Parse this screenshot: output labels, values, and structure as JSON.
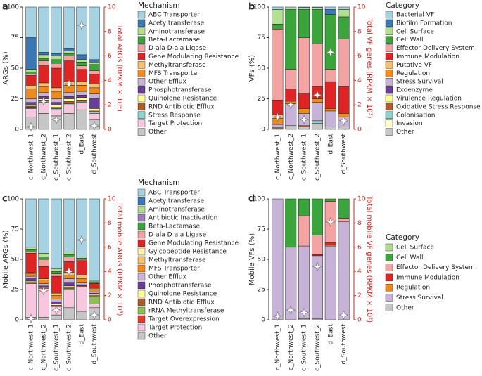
{
  "chart_data": [
    {
      "type": "stacked_bar",
      "label": "a",
      "ylabel": "ARGs (%)",
      "y2label": "Total ARGs (RPKM × 10⁴)",
      "legend_title": "Mechanism",
      "categories": [
        "c_Northwest_1",
        "c_Northwest_2",
        "c_Southwest_1",
        "c_Southwest_2",
        "d_East",
        "d_Southwest"
      ],
      "ylim": [
        0,
        100
      ],
      "yticks": [
        0,
        25,
        50,
        75,
        100
      ],
      "y2lim": [
        0,
        10
      ],
      "y2ticks": [
        0,
        2,
        4,
        6,
        8,
        10
      ],
      "y2_values": [
        0.2,
        2.3,
        0.8,
        3.7,
        8.5,
        0.3
      ],
      "series": [
        {
          "name": "ABC Transporter",
          "color": "#a6d3e3",
          "values": [
            25,
            37,
            38,
            34,
            39,
            43
          ]
        },
        {
          "name": "Acetyltransferase",
          "color": "#3a78b5",
          "values": [
            26,
            2,
            2,
            2,
            4,
            2
          ]
        },
        {
          "name": "Aminotransferase",
          "color": "#b3e08e",
          "values": [
            2,
            3,
            3,
            2,
            2,
            2
          ]
        },
        {
          "name": "Beta-Lactamase",
          "color": "#3aa53a",
          "values": [
            2,
            2,
            3,
            2,
            3,
            5
          ]
        },
        {
          "name": "D-ala D-ala Ligase",
          "color": "#f4a3a3",
          "values": [
            1,
            4,
            4,
            4,
            3,
            3
          ]
        },
        {
          "name": "Gene Modulating Resistance",
          "color": "#e02424",
          "values": [
            8,
            14,
            16,
            17,
            10,
            8
          ]
        },
        {
          "name": "Methyltransferase",
          "color": "#f8bf6e",
          "values": [
            3,
            3,
            3,
            3,
            3,
            3
          ]
        },
        {
          "name": "MFS Transporter",
          "color": "#f08a1c",
          "values": [
            8,
            5,
            6,
            6,
            5,
            5
          ]
        },
        {
          "name": "Other Efflux",
          "color": "#c8b3d8",
          "values": [
            3,
            3,
            3,
            3,
            3,
            4
          ]
        },
        {
          "name": "Phosphotransferase",
          "color": "#6a3d9a",
          "values": [
            2,
            2,
            2,
            2,
            2,
            8
          ]
        },
        {
          "name": "Quinolone Resistance",
          "color": "#ffff99",
          "values": [
            1,
            1,
            2,
            2,
            2,
            2
          ]
        },
        {
          "name": "RND Antibiotic Efflux",
          "color": "#b15928",
          "values": [
            1,
            1,
            1,
            2,
            1,
            1
          ]
        },
        {
          "name": "Stress Response",
          "color": "#8dd3c7",
          "values": [
            1,
            1,
            1,
            1,
            1,
            1
          ]
        },
        {
          "name": "Target Protection",
          "color": "#f9c6e0",
          "values": [
            7,
            9,
            5,
            7,
            6,
            5
          ]
        },
        {
          "name": "Other",
          "color": "#c6c6c6",
          "values": [
            10,
            13,
            11,
            13,
            16,
            8
          ]
        }
      ]
    },
    {
      "type": "stacked_bar",
      "label": "b",
      "ylabel": "VFs (%)",
      "y2label": "Total VF genes (RPKM × 10³)",
      "legend_title": "Category",
      "categories": [
        "c_Northwest_1",
        "c_Northwest_2",
        "c_Southwest_1",
        "c_Southwest_2",
        "d_East",
        "d_Southwest"
      ],
      "ylim": [
        0,
        100
      ],
      "yticks": [
        0,
        25,
        50,
        75,
        100
      ],
      "y2lim": [
        0,
        10
      ],
      "y2ticks": [
        0,
        2,
        4,
        6,
        8,
        10
      ],
      "y2_values": [
        1.0,
        2.0,
        0.8,
        2.8,
        6.3,
        0.7
      ],
      "series": [
        {
          "name": "Bacterial VF",
          "color": "#a6d3e3",
          "values": [
            2,
            1,
            0,
            0,
            2,
            2
          ]
        },
        {
          "name": "Biofilm Formation",
          "color": "#3a78b5",
          "values": [
            0,
            0,
            1,
            1,
            4,
            0
          ]
        },
        {
          "name": "Cell Surface",
          "color": "#b3e08e",
          "values": [
            12,
            1,
            1,
            1,
            0,
            6
          ]
        },
        {
          "name": "Cell Wall",
          "color": "#3aa53a",
          "values": [
            4,
            49,
            23,
            28,
            45,
            18
          ]
        },
        {
          "name": "Effector Delivery System",
          "color": "#f4a3a3",
          "values": [
            58,
            16,
            46,
            35,
            10,
            39
          ]
        },
        {
          "name": "Immune Modulation",
          "color": "#e02424",
          "values": [
            12,
            10,
            12,
            10,
            22,
            22
          ]
        },
        {
          "name": "Putative VF",
          "color": "#f8bf6e",
          "values": [
            3,
            0,
            0,
            0,
            0,
            0
          ]
        },
        {
          "name": "Regulation",
          "color": "#f08a1c",
          "values": [
            5,
            2,
            4,
            3,
            2,
            3
          ]
        },
        {
          "name": "Stress Survival",
          "color": "#c8b3d8",
          "values": [
            2,
            18,
            10,
            15,
            13,
            8
          ]
        },
        {
          "name": "Exoenzyme",
          "color": "#6a3d9a",
          "values": [
            0,
            0,
            0,
            0,
            0,
            0
          ]
        },
        {
          "name": "Virulence Regulation",
          "color": "#ffff99",
          "values": [
            0,
            0,
            0,
            0,
            0,
            0
          ]
        },
        {
          "name": "Oxidative Stress Response",
          "color": "#b15928",
          "values": [
            1,
            0,
            1,
            0,
            0,
            0
          ]
        },
        {
          "name": "Colonisation",
          "color": "#8dd3c7",
          "values": [
            0,
            0,
            0,
            2,
            0,
            0
          ]
        },
        {
          "name": "Invasion",
          "color": "#ffffcc",
          "values": [
            0,
            0,
            0,
            0,
            0,
            0
          ]
        },
        {
          "name": "Other",
          "color": "#c6c6c6",
          "values": [
            1,
            3,
            2,
            5,
            2,
            2
          ]
        }
      ]
    },
    {
      "type": "stacked_bar",
      "label": "c",
      "ylabel": "Mobile ARGs (%)",
      "y2label": "Total mobile ARGs (RPKM × 10³)",
      "legend_title": "Mechanism",
      "categories": [
        "c_Northwest_1",
        "c_Northwest_2",
        "c_Southwest_1",
        "c_Southwest_2",
        "d_East",
        "d_Southwest"
      ],
      "ylim": [
        0,
        100
      ],
      "yticks": [
        0,
        25,
        50,
        75,
        100
      ],
      "y2lim": [
        0,
        10
      ],
      "y2ticks": [
        0,
        2,
        4,
        6,
        8,
        10
      ],
      "y2_values": [
        0.1,
        2.4,
        0.8,
        4.0,
        6.6,
        0.4
      ],
      "series": [
        {
          "name": "ABC Transporter",
          "color": "#a6d3e3",
          "values": [
            40,
            45,
            58,
            44,
            48,
            68
          ]
        },
        {
          "name": "Acetyltransferase",
          "color": "#3a78b5",
          "values": [
            0,
            0,
            0,
            0,
            0,
            0
          ]
        },
        {
          "name": "Aminotransferase",
          "color": "#b3e08e",
          "values": [
            2,
            3,
            2,
            2,
            1,
            1
          ]
        },
        {
          "name": "Antibiotic Inactivation",
          "color": "#9e7cc0",
          "values": [
            0,
            0,
            0,
            0,
            0,
            0
          ]
        },
        {
          "name": "Beta-Lactamase",
          "color": "#3aa53a",
          "values": [
            2,
            2,
            2,
            2,
            1,
            1
          ]
        },
        {
          "name": "D-ala D-ala Ligase",
          "color": "#f4a3a3",
          "values": [
            1,
            6,
            2,
            4,
            1,
            0
          ]
        },
        {
          "name": "Gene Modulating Resistance",
          "color": "#e02424",
          "values": [
            16,
            10,
            14,
            9,
            12,
            4
          ]
        },
        {
          "name": "Gylcopeptide Resistance",
          "color": "#fff3a8",
          "values": [
            0,
            0,
            0,
            0,
            0,
            0
          ]
        },
        {
          "name": "Methyltransferase",
          "color": "#f8bf6e",
          "values": [
            1,
            1,
            2,
            2,
            3,
            1
          ]
        },
        {
          "name": "MFS Transporter",
          "color": "#f08a1c",
          "values": [
            2,
            3,
            3,
            3,
            3,
            2
          ]
        },
        {
          "name": "Other Efflux",
          "color": "#c8b3d8",
          "values": [
            2,
            2,
            2,
            3,
            2,
            1
          ]
        },
        {
          "name": "Phosphotransferase",
          "color": "#6a3d9a",
          "values": [
            2,
            1,
            2,
            3,
            1,
            1
          ]
        },
        {
          "name": "Quinolone Resistance",
          "color": "#ffff99",
          "values": [
            1,
            0,
            1,
            1,
            0,
            1
          ]
        },
        {
          "name": "RND Antibiotic Efflux",
          "color": "#b15928",
          "values": [
            1,
            1,
            1,
            1,
            1,
            1
          ]
        },
        {
          "name": "rRNA Methyltransferase",
          "color": "#8cc152",
          "values": [
            0,
            0,
            0,
            1,
            0,
            6
          ]
        },
        {
          "name": "Target Overexpression",
          "color": "#e8372b",
          "values": [
            0,
            0,
            0,
            0,
            0,
            0
          ]
        },
        {
          "name": "Target Protection",
          "color": "#f9c6e0",
          "values": [
            28,
            24,
            7,
            15,
            20,
            3
          ]
        },
        {
          "name": "Other",
          "color": "#c6c6c6",
          "values": [
            2,
            2,
            4,
            10,
            7,
            10
          ]
        }
      ]
    },
    {
      "type": "stacked_bar",
      "label": "d",
      "ylabel": "Mobile VFs (%)",
      "y2label": "Total mobile VF genes (RPKM × 10²)",
      "legend_title": "Category",
      "categories": [
        "c_Northwest_1",
        "c_Northwest_2",
        "c_Southwest_1",
        "c_Southwest_2",
        "d_East",
        "d_Southwest"
      ],
      "ylim": [
        0,
        100
      ],
      "yticks": [
        0,
        25,
        50,
        75,
        100
      ],
      "y2lim": [
        0,
        10
      ],
      "y2ticks": [
        0,
        2,
        4,
        6,
        8,
        10
      ],
      "y2_values": [
        0.3,
        0.8,
        0.6,
        4.4,
        8.1,
        0.4
      ],
      "series": [
        {
          "name": "Cell Surface",
          "color": "#b3e08e",
          "values": [
            0,
            0,
            0,
            0,
            0,
            0
          ]
        },
        {
          "name": "Cell Wall",
          "color": "#3aa53a",
          "values": [
            0,
            40,
            14,
            30,
            2,
            16
          ]
        },
        {
          "name": "Effector Delivery System",
          "color": "#f4a3a3",
          "values": [
            0,
            0,
            25,
            16,
            34,
            3
          ]
        },
        {
          "name": "Immune Modulation",
          "color": "#e02424",
          "values": [
            0,
            0,
            0,
            1,
            2,
            0
          ]
        },
        {
          "name": "Regulation",
          "color": "#f08a1c",
          "values": [
            0,
            0,
            0,
            0,
            1,
            0
          ]
        },
        {
          "name": "Stress Survival",
          "color": "#c8b3d8",
          "values": [
            100,
            60,
            60,
            52,
            61,
            81
          ]
        },
        {
          "name": "Other",
          "color": "#c6c6c6",
          "values": [
            0,
            0,
            1,
            1,
            0,
            0
          ]
        }
      ]
    }
  ]
}
